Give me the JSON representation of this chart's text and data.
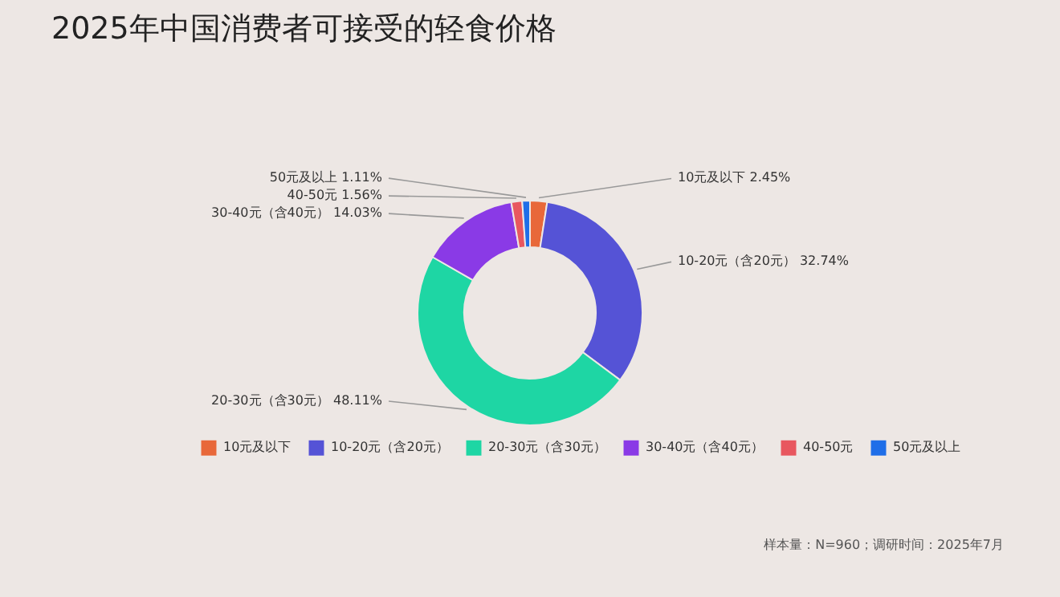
{
  "chart_data": {
    "type": "donut",
    "title": "2025年中国消费者可接受的轻食价格",
    "categories": [
      "10元及以下",
      "10-20元（含20元）",
      "20-30元（含30元）",
      "30-40元（含40元）",
      "40-50元",
      "50元及以上"
    ],
    "values": [
      2.45,
      32.74,
      48.11,
      14.03,
      1.56,
      1.11
    ],
    "value_labels": [
      "2.45%",
      "32.74%",
      "48.11%",
      "14.03%",
      "1.56%",
      "1.11%"
    ],
    "colors": [
      "#e8683a",
      "#5553d6",
      "#1ed6a4",
      "#8a3ae6",
      "#e8575f",
      "#1f6ee8"
    ],
    "legend": "bottom",
    "annotations": [
      "样本量：N=960；调研时间：2025年7月"
    ]
  }
}
